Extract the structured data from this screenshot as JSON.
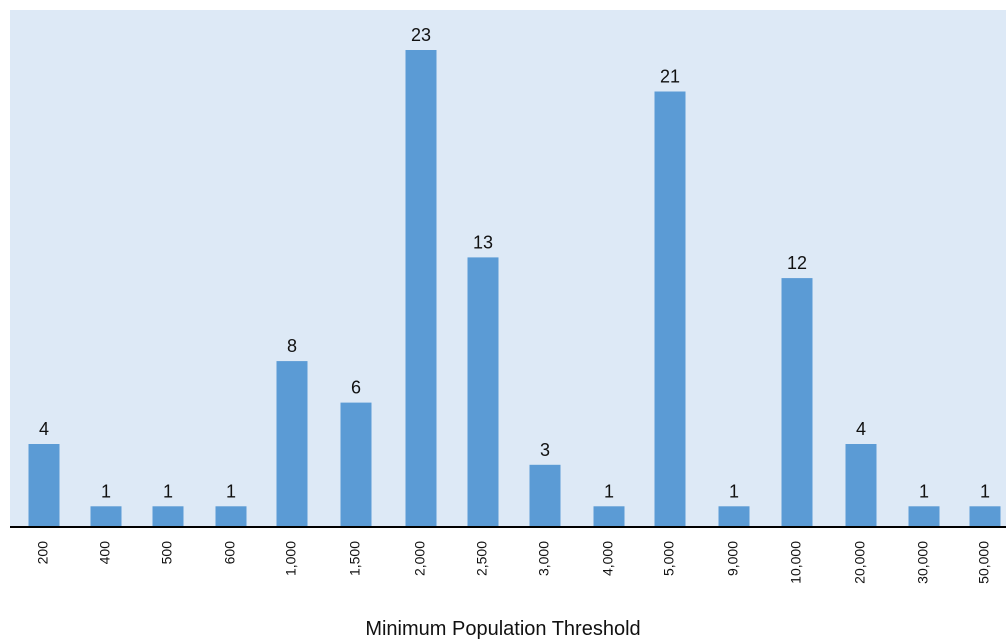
{
  "chart_data": {
    "type": "bar",
    "title": "",
    "xlabel": "Minimum Population Threshold",
    "ylabel": "",
    "categories": [
      "200",
      "400",
      "500",
      "600",
      "1,000",
      "1,500",
      "2,000",
      "2,500",
      "3,000",
      "4,000",
      "5,000",
      "9,000",
      "10,000",
      "20,000",
      "30,000",
      "50,000"
    ],
    "values": [
      4,
      1,
      1,
      1,
      8,
      6,
      23,
      13,
      3,
      1,
      21,
      1,
      12,
      4,
      1,
      1
    ],
    "ylim": [
      0,
      25
    ],
    "grid": false,
    "legend": "none",
    "colors": {
      "bar": "#5b9bd5",
      "plot_background": "#dde9f6",
      "axis": "#000000"
    }
  }
}
